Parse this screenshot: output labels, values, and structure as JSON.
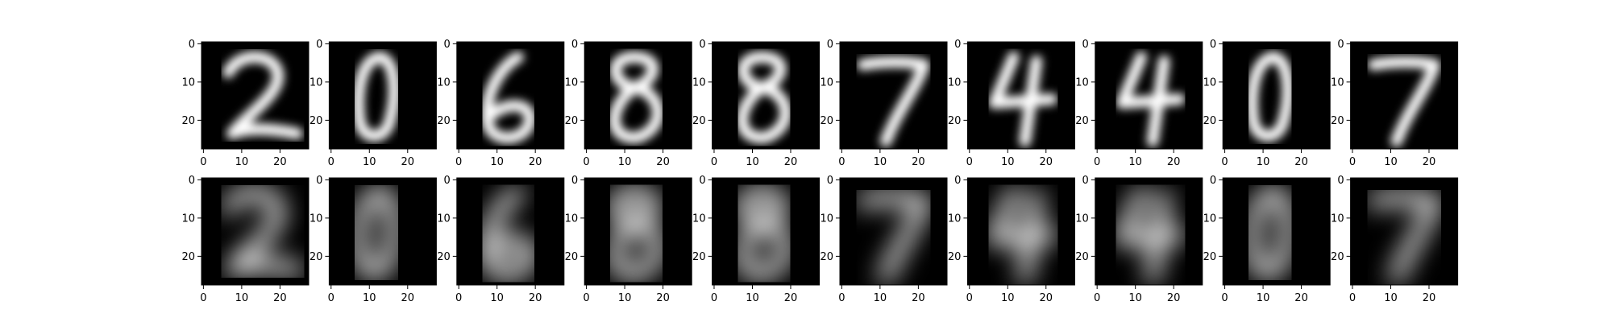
{
  "chart_data": {
    "type": "heatmap",
    "layout": {
      "rows": 2,
      "cols": 10
    },
    "image_size": [
      28,
      28
    ],
    "colormap": "gray",
    "xticks": [
      0,
      10,
      20
    ],
    "yticks": [
      0,
      10,
      20
    ],
    "digits": [
      {
        "original": "2",
        "reconstruction": "2"
      },
      {
        "original": "0",
        "reconstruction": "0"
      },
      {
        "original": "6",
        "reconstruction": "6"
      },
      {
        "original": "8",
        "reconstruction": "8"
      },
      {
        "original": "8",
        "reconstruction": "8"
      },
      {
        "original": "7",
        "reconstruction": "7"
      },
      {
        "original": "4",
        "reconstruction": "4"
      },
      {
        "original": "4",
        "reconstruction": "4"
      },
      {
        "original": "0",
        "reconstruction": "0"
      },
      {
        "original": "7",
        "reconstruction": "7"
      }
    ],
    "title": "",
    "xlabel": "",
    "ylabel": ""
  }
}
